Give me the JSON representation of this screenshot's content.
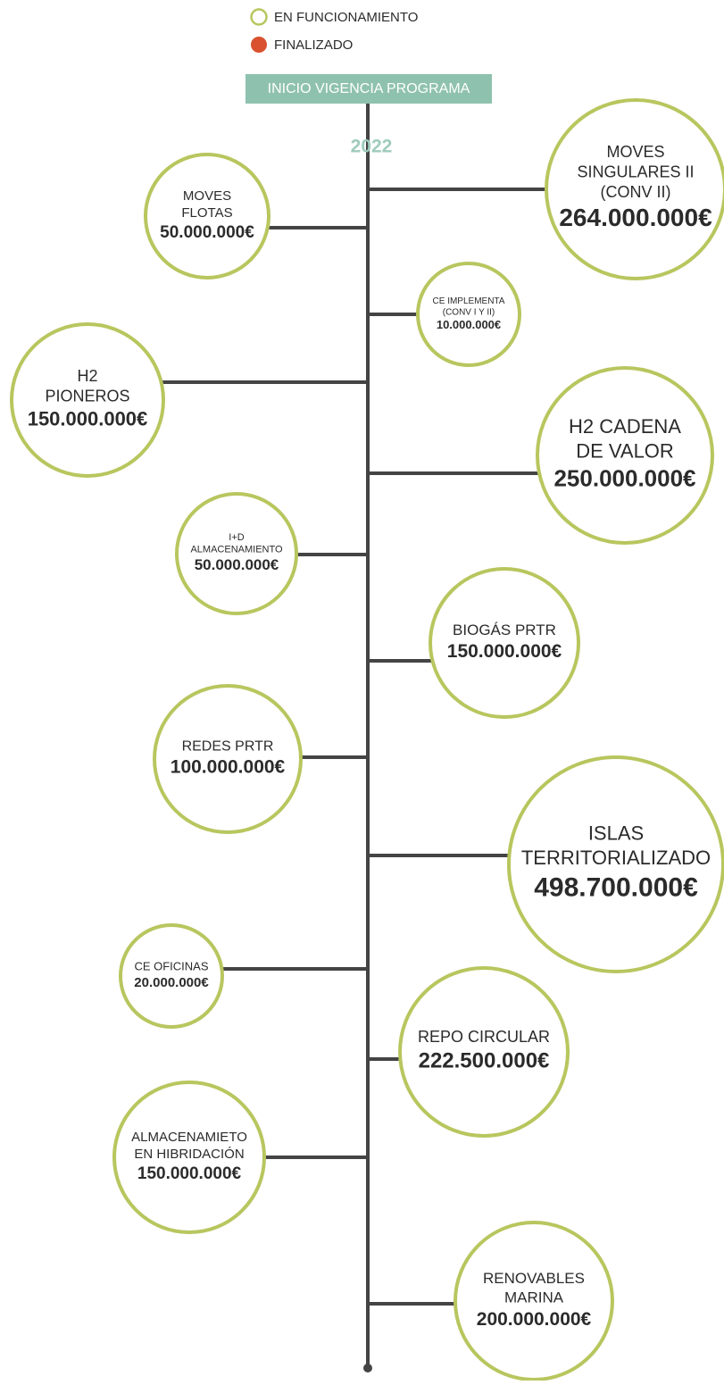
{
  "legend": [
    {
      "label": "EN FUNCIONAMIENTO"
    },
    {
      "label": "FINALIZADO"
    }
  ],
  "header": {
    "title": "INICIO VIGENCIA PROGRAMA",
    "year": "2022"
  },
  "nodes": [
    {
      "lines": [
        "MOVES",
        "SINGULARES II",
        "(CONV II)"
      ],
      "amount": "264.000.000€"
    },
    {
      "lines": [
        "MOVES",
        "FLOTAS"
      ],
      "amount": "50.000.000€"
    },
    {
      "lines": [
        "CE IMPLEMENTA",
        "(CONV I Y II)"
      ],
      "amount": "10.000.000€"
    },
    {
      "lines": [
        "H2",
        "PIONEROS"
      ],
      "amount": "150.000.000€"
    },
    {
      "lines": [
        "H2 CADENA",
        "DE VALOR"
      ],
      "amount": "250.000.000€"
    },
    {
      "lines": [
        "I+D",
        "ALMACENAMIENTO"
      ],
      "amount": "50.000.000€"
    },
    {
      "lines": [
        "BIOGÁS PRTR"
      ],
      "amount": "150.000.000€"
    },
    {
      "lines": [
        "REDES PRTR"
      ],
      "amount": "100.000.000€"
    },
    {
      "lines": [
        "ISLAS",
        "TERRITORIALIZADO"
      ],
      "amount": "498.700.000€"
    },
    {
      "lines": [
        "CE OFICINAS"
      ],
      "amount": "20.000.000€"
    },
    {
      "lines": [
        "REPO CIRCULAR"
      ],
      "amount": "222.500.000€"
    },
    {
      "lines": [
        "ALMACENAMIETO",
        "EN HIBRIDACIÓN"
      ],
      "amount": "150.000.000€"
    },
    {
      "lines": [
        "RENOVABLES",
        "MARINA"
      ],
      "amount": "200.000.000€"
    }
  ]
}
